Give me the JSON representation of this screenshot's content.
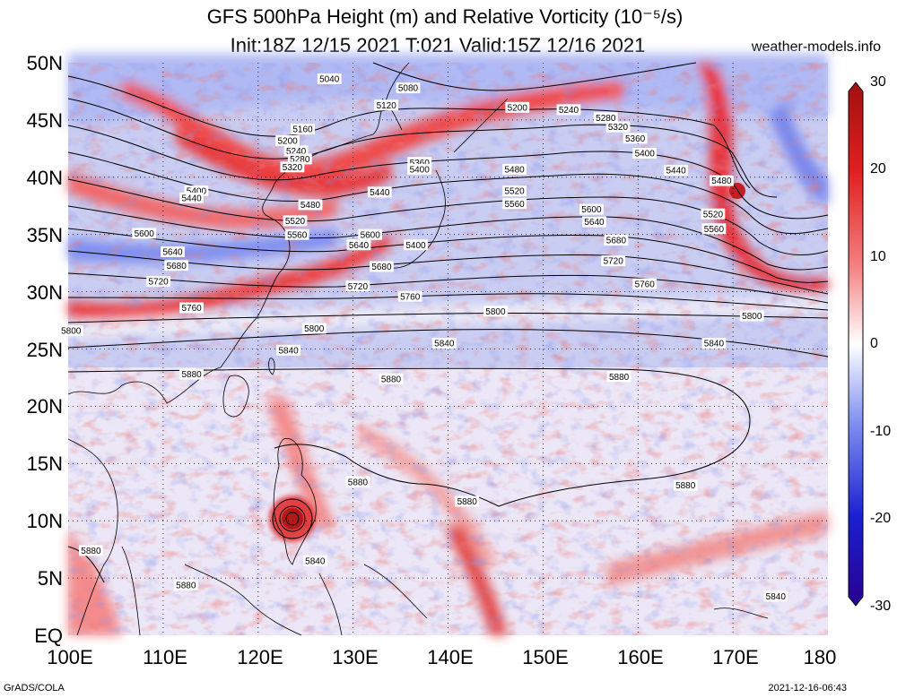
{
  "title_line1": "GFS 500hPa Height (m) and Relative Vorticity (10⁻⁵/s)",
  "title_line2": "Init:18Z 12/15 2021 T:021 Valid:15Z 12/16 2021",
  "site": "weather-models.info",
  "lat_labels": [
    "50N",
    "45N",
    "40N",
    "35N",
    "30N",
    "25N",
    "20N",
    "15N",
    "10N",
    "5N",
    "EQ"
  ],
  "lon_labels": [
    "100E",
    "110E",
    "120E",
    "130E",
    "140E",
    "150E",
    "160E",
    "170E",
    "180"
  ],
  "colorbar_labels": [
    "30",
    "20",
    "10",
    "0",
    "-10",
    "-20",
    "-30"
  ],
  "footer_left": "GrADS/COLA",
  "footer_right": "2021-12-16-06:43",
  "contour_labels": [
    {
      "t": "5040",
      "lon": 127.5,
      "lat": 48.6
    },
    {
      "t": "5080",
      "lon": 135.8,
      "lat": 47.8
    },
    {
      "t": "5120",
      "lon": 133.5,
      "lat": 46.3
    },
    {
      "t": "5200",
      "lon": 147.3,
      "lat": 46.1
    },
    {
      "t": "5240",
      "lon": 152.7,
      "lat": 45.9
    },
    {
      "t": "5280",
      "lon": 156.6,
      "lat": 45.2
    },
    {
      "t": "5320",
      "lon": 157.9,
      "lat": 44.4
    },
    {
      "t": "5360",
      "lon": 159.7,
      "lat": 43.4
    },
    {
      "t": "5400",
      "lon": 160.7,
      "lat": 42.1
    },
    {
      "t": "5440",
      "lon": 164.0,
      "lat": 40.6
    },
    {
      "t": "5480",
      "lon": 168.8,
      "lat": 39.7
    },
    {
      "t": "5520",
      "lon": 167.9,
      "lat": 36.8
    },
    {
      "t": "5560",
      "lon": 168.0,
      "lat": 35.5
    },
    {
      "t": "5160",
      "lon": 124.7,
      "lat": 44.2
    },
    {
      "t": "5200",
      "lon": 123.1,
      "lat": 43.2
    },
    {
      "t": "5240",
      "lon": 124.0,
      "lat": 42.3
    },
    {
      "t": "5280",
      "lon": 124.4,
      "lat": 41.6
    },
    {
      "t": "5320",
      "lon": 123.6,
      "lat": 40.9
    },
    {
      "t": "5360",
      "lon": 137.0,
      "lat": 41.3
    },
    {
      "t": "5400",
      "lon": 137.0,
      "lat": 40.7
    },
    {
      "t": "5480",
      "lon": 147.0,
      "lat": 40.7
    },
    {
      "t": "5400",
      "lon": 113.5,
      "lat": 38.8
    },
    {
      "t": "5440",
      "lon": 113.0,
      "lat": 38.2
    },
    {
      "t": "5440",
      "lon": 132.8,
      "lat": 38.7
    },
    {
      "t": "5520",
      "lon": 147.0,
      "lat": 38.8
    },
    {
      "t": "5560",
      "lon": 147.0,
      "lat": 37.7
    },
    {
      "t": "5480",
      "lon": 125.5,
      "lat": 37.6
    },
    {
      "t": "5600",
      "lon": 155.1,
      "lat": 37.2
    },
    {
      "t": "5520",
      "lon": 123.9,
      "lat": 36.2
    },
    {
      "t": "5640",
      "lon": 155.4,
      "lat": 36.1
    },
    {
      "t": "5600",
      "lon": 108.0,
      "lat": 35.1
    },
    {
      "t": "5560",
      "lon": 124.1,
      "lat": 35.0
    },
    {
      "t": "5600",
      "lon": 131.8,
      "lat": 35.0
    },
    {
      "t": "5400",
      "lon": 136.6,
      "lat": 34.1
    },
    {
      "t": "5640",
      "lon": 130.6,
      "lat": 34.1
    },
    {
      "t": "5680",
      "lon": 157.7,
      "lat": 34.5
    },
    {
      "t": "5640",
      "lon": 111.0,
      "lat": 33.5
    },
    {
      "t": "5720",
      "lon": 157.4,
      "lat": 32.7
    },
    {
      "t": "5680",
      "lon": 111.4,
      "lat": 32.3
    },
    {
      "t": "5680",
      "lon": 133.0,
      "lat": 32.2
    },
    {
      "t": "5720",
      "lon": 109.5,
      "lat": 30.9
    },
    {
      "t": "5720",
      "lon": 130.5,
      "lat": 30.5
    },
    {
      "t": "5760",
      "lon": 160.7,
      "lat": 30.7
    },
    {
      "t": "5760",
      "lon": 136.0,
      "lat": 29.6
    },
    {
      "t": "5760",
      "lon": 113.0,
      "lat": 28.6
    },
    {
      "t": "5800",
      "lon": 145.0,
      "lat": 28.3
    },
    {
      "t": "5800",
      "lon": 125.9,
      "lat": 26.8
    },
    {
      "t": "5800",
      "lon": 100.3,
      "lat": 26.6
    },
    {
      "t": "5800",
      "lon": 172.0,
      "lat": 27.9
    },
    {
      "t": "5840",
      "lon": 139.6,
      "lat": 25.5
    },
    {
      "t": "5840",
      "lon": 123.2,
      "lat": 24.9
    },
    {
      "t": "5840",
      "lon": 168.0,
      "lat": 25.5
    },
    {
      "t": "5880",
      "lon": 113.0,
      "lat": 22.8
    },
    {
      "t": "5880",
      "lon": 134.0,
      "lat": 22.4
    },
    {
      "t": "5880",
      "lon": 158.0,
      "lat": 22.6
    },
    {
      "t": "5880",
      "lon": 130.5,
      "lat": 13.4
    },
    {
      "t": "5880",
      "lon": 142.0,
      "lat": 11.7
    },
    {
      "t": "5880",
      "lon": 165.0,
      "lat": 13.1
    },
    {
      "t": "5880",
      "lon": 102.4,
      "lat": 7.4
    },
    {
      "t": "5840",
      "lon": 126.0,
      "lat": 6.5
    },
    {
      "t": "5880",
      "lon": 112.4,
      "lat": 4.4
    },
    {
      "t": "5840",
      "lon": 174.5,
      "lat": 3.4
    }
  ]
}
